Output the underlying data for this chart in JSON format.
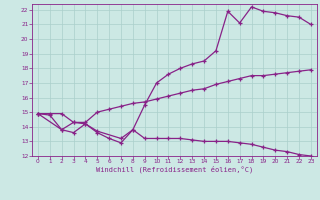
{
  "bg_color": "#cce8e4",
  "grid_color": "#aacfcb",
  "line_color": "#882288",
  "xlabel": "Windchill (Refroidissement éolien,°C)",
  "xlim": [
    -0.5,
    23.5
  ],
  "ylim": [
    12,
    22.4
  ],
  "xticks": [
    0,
    1,
    2,
    3,
    4,
    5,
    6,
    7,
    8,
    9,
    10,
    11,
    12,
    13,
    14,
    15,
    16,
    17,
    18,
    19,
    20,
    21,
    22,
    23
  ],
  "yticks": [
    12,
    13,
    14,
    15,
    16,
    17,
    18,
    19,
    20,
    21,
    22
  ],
  "line1_x": [
    0,
    1,
    2,
    3,
    4,
    5,
    6,
    7,
    8,
    9,
    10,
    11,
    12,
    13,
    14,
    15,
    16,
    17,
    18,
    19,
    20,
    21,
    22,
    23
  ],
  "line1_y": [
    14.9,
    14.8,
    13.8,
    13.6,
    14.2,
    13.6,
    13.2,
    12.9,
    13.8,
    13.2,
    13.2,
    13.2,
    13.2,
    13.1,
    13.0,
    13.0,
    13.0,
    12.9,
    12.8,
    12.6,
    12.4,
    12.3,
    12.1,
    12.0
  ],
  "line2_x": [
    0,
    1,
    2,
    3,
    4,
    5,
    6,
    7,
    8,
    9,
    10,
    11,
    12,
    13,
    14,
    15,
    16,
    17,
    18,
    19,
    20,
    21,
    22,
    23
  ],
  "line2_y": [
    14.9,
    14.9,
    14.9,
    14.3,
    14.3,
    15.0,
    15.2,
    15.4,
    15.6,
    15.7,
    15.9,
    16.1,
    16.3,
    16.5,
    16.6,
    16.9,
    17.1,
    17.3,
    17.5,
    17.5,
    17.6,
    17.7,
    17.8,
    17.9
  ],
  "line3_x": [
    0,
    2,
    3,
    4,
    5,
    7,
    8,
    9,
    10,
    11,
    12,
    13,
    14,
    15,
    16,
    17,
    18,
    19,
    20,
    21,
    22,
    23
  ],
  "line3_y": [
    14.9,
    13.8,
    14.3,
    14.2,
    13.7,
    13.2,
    13.8,
    15.5,
    17.0,
    17.6,
    18.0,
    18.3,
    18.5,
    19.2,
    21.9,
    21.1,
    22.2,
    21.9,
    21.8,
    21.6,
    21.5,
    21.0
  ]
}
